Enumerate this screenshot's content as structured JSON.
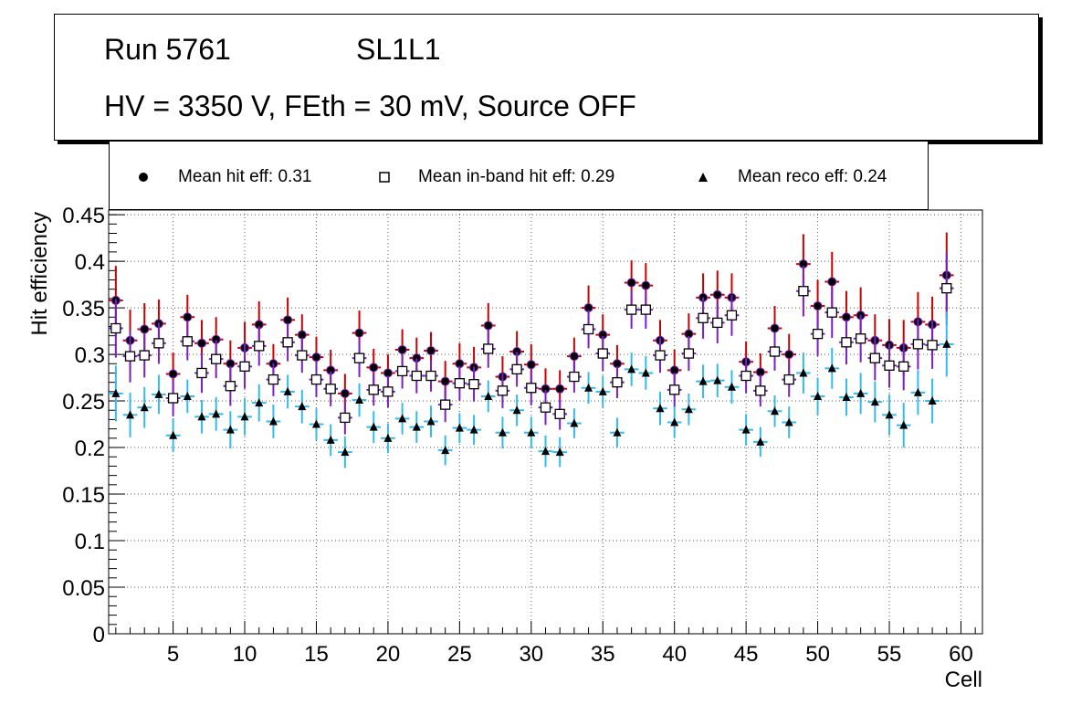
{
  "info": {
    "run": "Run 5761",
    "layer": "SL1L1",
    "conditions": "HV = 3350 V, FEth = 30 mV, Source OFF"
  },
  "legend": {
    "hit": "Mean hit  eff: 0.31",
    "inband": "Mean in-band hit eff: 0.29",
    "reco": "Mean reco eff: 0.24"
  },
  "colors": {
    "hit_err": "#cc0000",
    "inband_err": "#7a1fc2",
    "reco_err": "#33bbee",
    "marker": "#000000",
    "grid": "#555555"
  },
  "chart_data": {
    "type": "scatter",
    "xlabel": "Cell",
    "ylabel": "Hit efficiency",
    "xlim": [
      0.5,
      61.5
    ],
    "ylim": [
      0,
      0.455
    ],
    "xticks": [
      5,
      10,
      15,
      20,
      25,
      30,
      35,
      40,
      45,
      50,
      55,
      60
    ],
    "yticks": [
      0,
      0.05,
      0.1,
      0.15,
      0.2,
      0.25,
      0.3,
      0.35,
      0.4,
      0.45
    ],
    "ytick_labels": [
      "0",
      "0.05",
      "0.1",
      "0.15",
      "0.2",
      "0.25",
      "0.3",
      "0.35",
      "0.4",
      "0.45"
    ],
    "x": [
      1,
      2,
      3,
      4,
      5,
      6,
      7,
      8,
      9,
      10,
      11,
      12,
      13,
      14,
      15,
      16,
      17,
      18,
      19,
      20,
      21,
      22,
      23,
      24,
      25,
      26,
      27,
      28,
      29,
      30,
      31,
      32,
      33,
      34,
      35,
      36,
      37,
      38,
      39,
      40,
      41,
      42,
      43,
      44,
      45,
      46,
      47,
      48,
      49,
      50,
      51,
      52,
      53,
      54,
      55,
      56,
      57,
      58,
      59
    ],
    "series": [
      {
        "name": "Mean hit  eff: 0.31",
        "marker": "circle",
        "values": [
          0.358,
          0.315,
          0.327,
          0.333,
          0.279,
          0.34,
          0.312,
          0.316,
          0.29,
          0.307,
          0.332,
          0.29,
          0.337,
          0.321,
          0.297,
          0.283,
          0.258,
          0.323,
          0.286,
          0.28,
          0.305,
          0.296,
          0.304,
          0.271,
          0.29,
          0.286,
          0.331,
          0.276,
          0.303,
          0.289,
          0.263,
          0.263,
          0.298,
          0.35,
          0.321,
          0.29,
          0.377,
          0.374,
          0.315,
          0.283,
          0.322,
          0.361,
          0.364,
          0.361,
          0.292,
          0.281,
          0.328,
          0.3,
          0.397,
          0.352,
          0.378,
          0.34,
          0.342,
          0.315,
          0.31,
          0.307,
          0.335,
          0.332,
          0.385
        ],
        "err": [
          0.037,
          0.033,
          0.028,
          0.026,
          0.023,
          0.024,
          0.025,
          0.024,
          0.025,
          0.028,
          0.025,
          0.021,
          0.024,
          0.022,
          0.022,
          0.022,
          0.021,
          0.024,
          0.02,
          0.02,
          0.022,
          0.022,
          0.02,
          0.022,
          0.022,
          0.022,
          0.024,
          0.022,
          0.022,
          0.022,
          0.022,
          0.02,
          0.02,
          0.024,
          0.022,
          0.02,
          0.024,
          0.024,
          0.022,
          0.022,
          0.022,
          0.026,
          0.026,
          0.026,
          0.022,
          0.02,
          0.024,
          0.022,
          0.032,
          0.028,
          0.032,
          0.028,
          0.03,
          0.028,
          0.028,
          0.03,
          0.032,
          0.03,
          0.046
        ]
      },
      {
        "name": "Mean in-band hit eff: 0.29",
        "marker": "open-square",
        "values": [
          0.328,
          0.298,
          0.299,
          0.312,
          0.253,
          0.314,
          0.28,
          0.295,
          0.266,
          0.287,
          0.309,
          0.273,
          0.313,
          0.299,
          0.273,
          0.263,
          0.232,
          0.296,
          0.262,
          0.26,
          0.282,
          0.277,
          0.277,
          0.246,
          0.269,
          0.268,
          0.306,
          0.261,
          0.284,
          0.264,
          0.243,
          0.236,
          0.276,
          0.327,
          0.301,
          0.27,
          0.348,
          0.348,
          0.299,
          0.262,
          0.301,
          0.339,
          0.334,
          0.342,
          0.277,
          0.261,
          0.303,
          0.273,
          0.368,
          0.322,
          0.345,
          0.313,
          0.317,
          0.296,
          0.288,
          0.287,
          0.311,
          0.31,
          0.371
        ]
      },
      {
        "name": "Mean reco eff: 0.24",
        "marker": "triangle",
        "values": [
          0.258,
          0.235,
          0.243,
          0.257,
          0.213,
          0.255,
          0.233,
          0.236,
          0.219,
          0.233,
          0.248,
          0.228,
          0.26,
          0.244,
          0.225,
          0.208,
          0.195,
          0.251,
          0.222,
          0.21,
          0.231,
          0.222,
          0.228,
          0.197,
          0.221,
          0.219,
          0.255,
          0.216,
          0.24,
          0.216,
          0.196,
          0.195,
          0.226,
          0.264,
          0.26,
          0.216,
          0.284,
          0.28,
          0.242,
          0.227,
          0.241,
          0.271,
          0.272,
          0.265,
          0.219,
          0.206,
          0.239,
          0.227,
          0.28,
          0.255,
          0.285,
          0.254,
          0.258,
          0.249,
          0.235,
          0.224,
          0.259,
          0.25,
          0.311
        ],
        "err": [
          0.03,
          0.024,
          0.022,
          0.021,
          0.018,
          0.018,
          0.018,
          0.018,
          0.02,
          0.02,
          0.02,
          0.018,
          0.018,
          0.018,
          0.017,
          0.017,
          0.017,
          0.018,
          0.017,
          0.016,
          0.017,
          0.017,
          0.017,
          0.016,
          0.016,
          0.016,
          0.017,
          0.017,
          0.017,
          0.017,
          0.017,
          0.016,
          0.016,
          0.017,
          0.017,
          0.016,
          0.018,
          0.018,
          0.018,
          0.017,
          0.017,
          0.018,
          0.018,
          0.018,
          0.017,
          0.016,
          0.017,
          0.017,
          0.022,
          0.02,
          0.022,
          0.02,
          0.022,
          0.022,
          0.022,
          0.024,
          0.024,
          0.024,
          0.035
        ]
      }
    ]
  }
}
